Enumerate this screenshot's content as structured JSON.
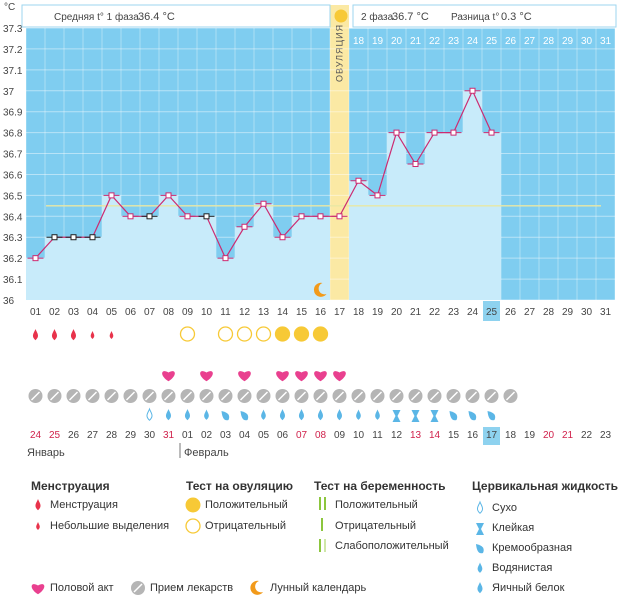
{
  "header": {
    "phase1_label": "Средняя t° 1 фаза",
    "phase1_value": "36.4 °C",
    "phase2_label": "2 фаза",
    "phase2_value": "36.7 °C",
    "diff_label": "Разница t°",
    "diff_value": "0.3 °C",
    "unit": "°C"
  },
  "chart_data": {
    "type": "line",
    "title": "",
    "ylabel": "°C",
    "ylim": [
      36.0,
      37.3
    ],
    "yticks": [
      "37.3",
      "37.2",
      "37.1",
      "37",
      "36.9",
      "36.8",
      "36.7",
      "36.6",
      "36.5",
      "36.4",
      "36.3",
      "36.2",
      "36.1",
      "36"
    ],
    "days": [
      "01",
      "02",
      "03",
      "04",
      "05",
      "06",
      "07",
      "08",
      "09",
      "10",
      "11",
      "12",
      "13",
      "14",
      "15",
      "16",
      "17",
      "18",
      "19",
      "20",
      "21",
      "22",
      "23",
      "24",
      "25",
      "26",
      "27",
      "28",
      "29",
      "30",
      "31"
    ],
    "temperatures": [
      36.2,
      36.3,
      36.3,
      36.3,
      36.5,
      36.4,
      36.4,
      36.5,
      36.4,
      36.4,
      36.2,
      36.35,
      36.46,
      36.3,
      36.4,
      36.4,
      36.4,
      36.57,
      36.5,
      36.8,
      36.65,
      36.8,
      36.8,
      37.0,
      36.8,
      null,
      null,
      null,
      null,
      null,
      null
    ],
    "black_markers": [
      2,
      3,
      4,
      7,
      10
    ],
    "coverline": 36.45,
    "ovulation_day": 17,
    "ovulation_label": "ОВУЛЯЦИЯ",
    "today_day": 25,
    "moon_day": 16,
    "grid": true
  },
  "tracker": {
    "menstruation": [
      "big",
      "big",
      "big",
      "small",
      "small"
    ],
    "ovulation_tests": {
      "9": "negative",
      "11": "negative",
      "12": "negative",
      "13": "negative",
      "14": "positive",
      "15": "positive",
      "16": "positive"
    },
    "intercourse_days": [
      8,
      10,
      12,
      14,
      15,
      16,
      17
    ],
    "medication_days": 26,
    "cervical": [
      "",
      "",
      "",
      "",
      "",
      "",
      "dry",
      "egg",
      "egg",
      "watery",
      "creamy",
      "creamy",
      "watery",
      "egg",
      "egg",
      "egg",
      "egg",
      "watery",
      "watery",
      "sticky",
      "sticky",
      "sticky",
      "creamy",
      "creamy",
      "creamy"
    ]
  },
  "calendar": {
    "dates": [
      "24",
      "25",
      "26",
      "27",
      "28",
      "29",
      "30",
      "31",
      "01",
      "02",
      "03",
      "04",
      "05",
      "06",
      "07",
      "08",
      "09",
      "10",
      "11",
      "12",
      "13",
      "14",
      "15",
      "16",
      "17",
      "18",
      "19",
      "20",
      "21",
      "22",
      "23"
    ],
    "red_indices": [
      0,
      1,
      7,
      14,
      15,
      20,
      21,
      27,
      28
    ],
    "today_index": 24,
    "month1": "Январь",
    "month2": "Февраль"
  },
  "legend": {
    "menstruation_title": "Менструация",
    "menstruation": "Менструация",
    "spotting": "Небольшие выделения",
    "ovtest_title": "Тест на овуляцию",
    "ovtest_positive": "Положительный",
    "ovtest_negative": "Отрицательный",
    "pregtest_title": "Тест на беременность",
    "preg_positive": "Положительный",
    "preg_negative": "Отрицательный",
    "preg_weak": "Слабоположительный",
    "cervical_title": "Цервикальная жидкость",
    "cervical_dry": "Сухо",
    "cervical_sticky": "Клейкая",
    "cervical_creamy": "Кремообразная",
    "cervical_watery": "Водянистая",
    "cervical_egg": "Яичный белок",
    "intercourse": "Половой акт",
    "medication": "Прием лекарств",
    "lunar": "Лунный календарь"
  },
  "colors": {
    "bar": "#c8ebfa",
    "empty": "#7fcdf0",
    "line": "#cc2b71",
    "ovulation": "#fbe9a4",
    "red": "#e8334b",
    "yellow": "#f7c936",
    "pink": "#e9408f",
    "grey": "#b5b5b5",
    "drop": "#5bb6e6",
    "moon": "#f29a1a"
  }
}
